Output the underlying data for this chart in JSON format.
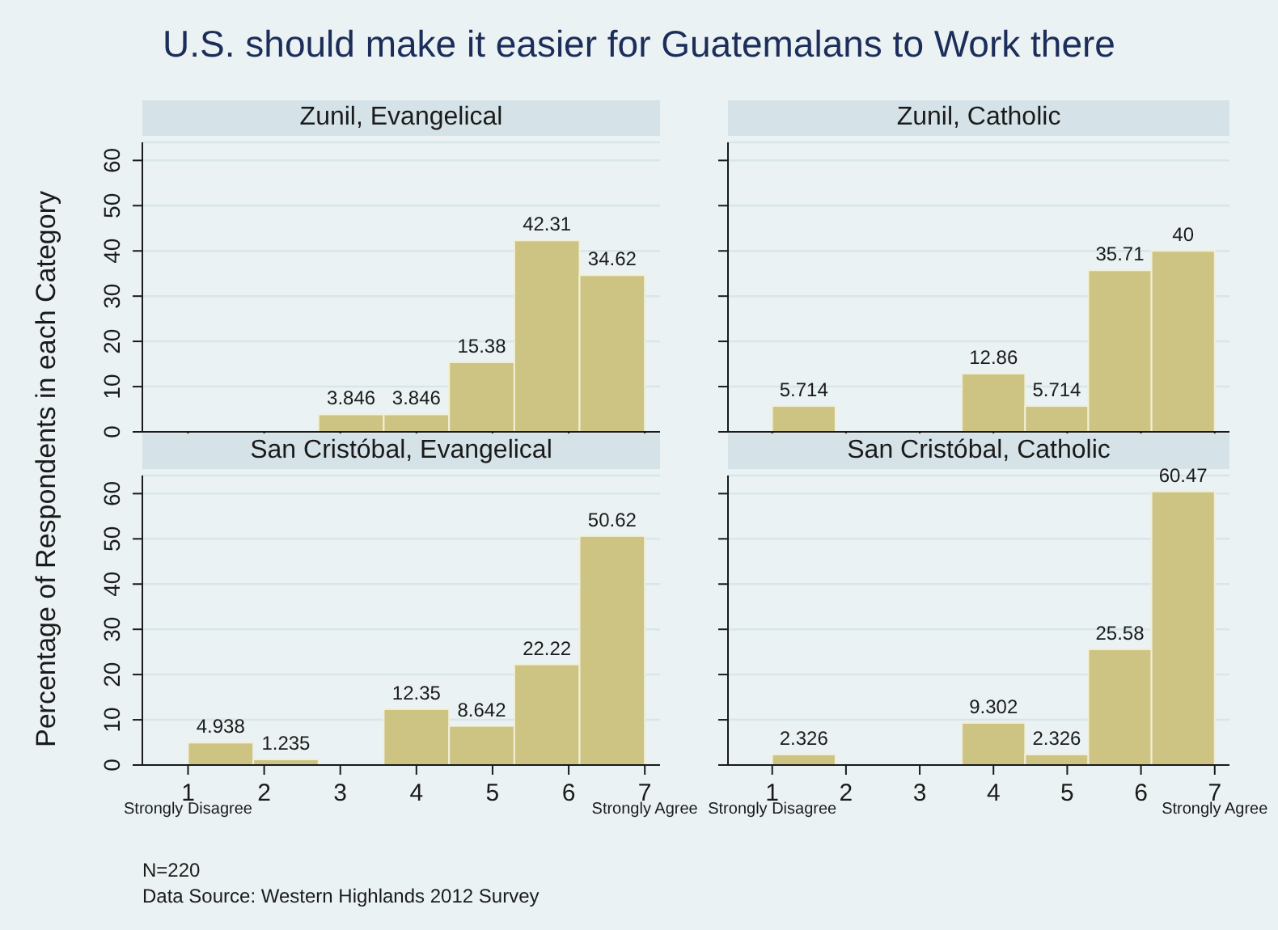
{
  "chart_data": [
    {
      "type": "histogram",
      "title": "U.S. should make it easier for Guatemalans to Work there",
      "subtitle": "Zunil, Evangelical",
      "ylabel": "Percentage of Respondents in each Category",
      "bins": [
        1,
        1.857,
        2.714,
        3.571,
        4.429,
        5.286,
        6.143,
        7
      ],
      "values": [
        0,
        0,
        3.846,
        3.846,
        15.38,
        42.31,
        34.62
      ],
      "value_labels": [
        null,
        null,
        "3.846",
        "3.846",
        "15.38",
        "42.31",
        "34.62"
      ],
      "color": "#cdc383",
      "xlim": [
        0.4,
        7.2
      ],
      "xticks": [
        1,
        2,
        3,
        4,
        5,
        6,
        7
      ],
      "ylim": [
        0,
        64
      ],
      "yticks": [
        0,
        10,
        20,
        30,
        40,
        50,
        60
      ],
      "grid": "y",
      "tick_labels": "y"
    },
    {
      "type": "histogram",
      "subtitle": "Zunil, Catholic",
      "bins": [
        1,
        1.857,
        2.714,
        3.571,
        4.429,
        5.286,
        6.143,
        7
      ],
      "values": [
        5.714,
        0,
        0,
        12.86,
        5.714,
        35.71,
        40
      ],
      "value_labels": [
        "5.714",
        null,
        null,
        "12.86",
        "5.714",
        "35.71",
        "40"
      ],
      "color": "#cdc383",
      "xlim": [
        0.4,
        7.2
      ],
      "xticks": [
        1,
        2,
        3,
        4,
        5,
        6,
        7
      ],
      "ylim": [
        0,
        64
      ],
      "yticks": [
        0,
        10,
        20,
        30,
        40,
        50,
        60
      ],
      "grid": "y",
      "tick_labels": false
    },
    {
      "type": "histogram",
      "subtitle": "San Cristóbal, Evangelical",
      "bins": [
        1,
        1.857,
        2.714,
        3.571,
        4.429,
        5.286,
        6.143,
        7
      ],
      "values": [
        4.938,
        1.235,
        0,
        12.35,
        8.642,
        22.22,
        50.62
      ],
      "value_labels": [
        "4.938",
        "1.235",
        null,
        "12.35",
        "8.642",
        "22.22",
        "50.62"
      ],
      "color": "#cdc383",
      "xlim": [
        0.4,
        7.2
      ],
      "xticks": [
        1,
        2,
        3,
        4,
        5,
        6,
        7
      ],
      "ylim": [
        0,
        64
      ],
      "yticks": [
        0,
        10,
        20,
        30,
        40,
        50,
        60
      ],
      "grid": "y",
      "annotations": [
        "Strongly Disagree",
        "Strongly Agree",
        "N=220",
        "Data Source: Western Highlands 2012 Survey"
      ]
    },
    {
      "type": "histogram",
      "subtitle": "San Cristóbal, Catholic",
      "bins": [
        1,
        1.857,
        2.714,
        3.571,
        4.429,
        5.286,
        6.143,
        7
      ],
      "values": [
        2.326,
        0,
        0,
        9.302,
        2.326,
        25.58,
        60.47
      ],
      "value_labels": [
        "2.326",
        null,
        null,
        "9.302",
        "2.326",
        "25.58",
        "60.47"
      ],
      "color": "#cdc383",
      "xlim": [
        0.4,
        7.2
      ],
      "xticks": [
        1,
        2,
        3,
        4,
        5,
        6,
        7
      ],
      "ylim": [
        0,
        64
      ],
      "yticks": [
        0,
        10,
        20,
        30,
        40,
        50,
        60
      ],
      "grid": "y",
      "tick_labels": "x",
      "annotations": [
        "Strongly Disagree",
        "Strongly Agree"
      ]
    }
  ]
}
